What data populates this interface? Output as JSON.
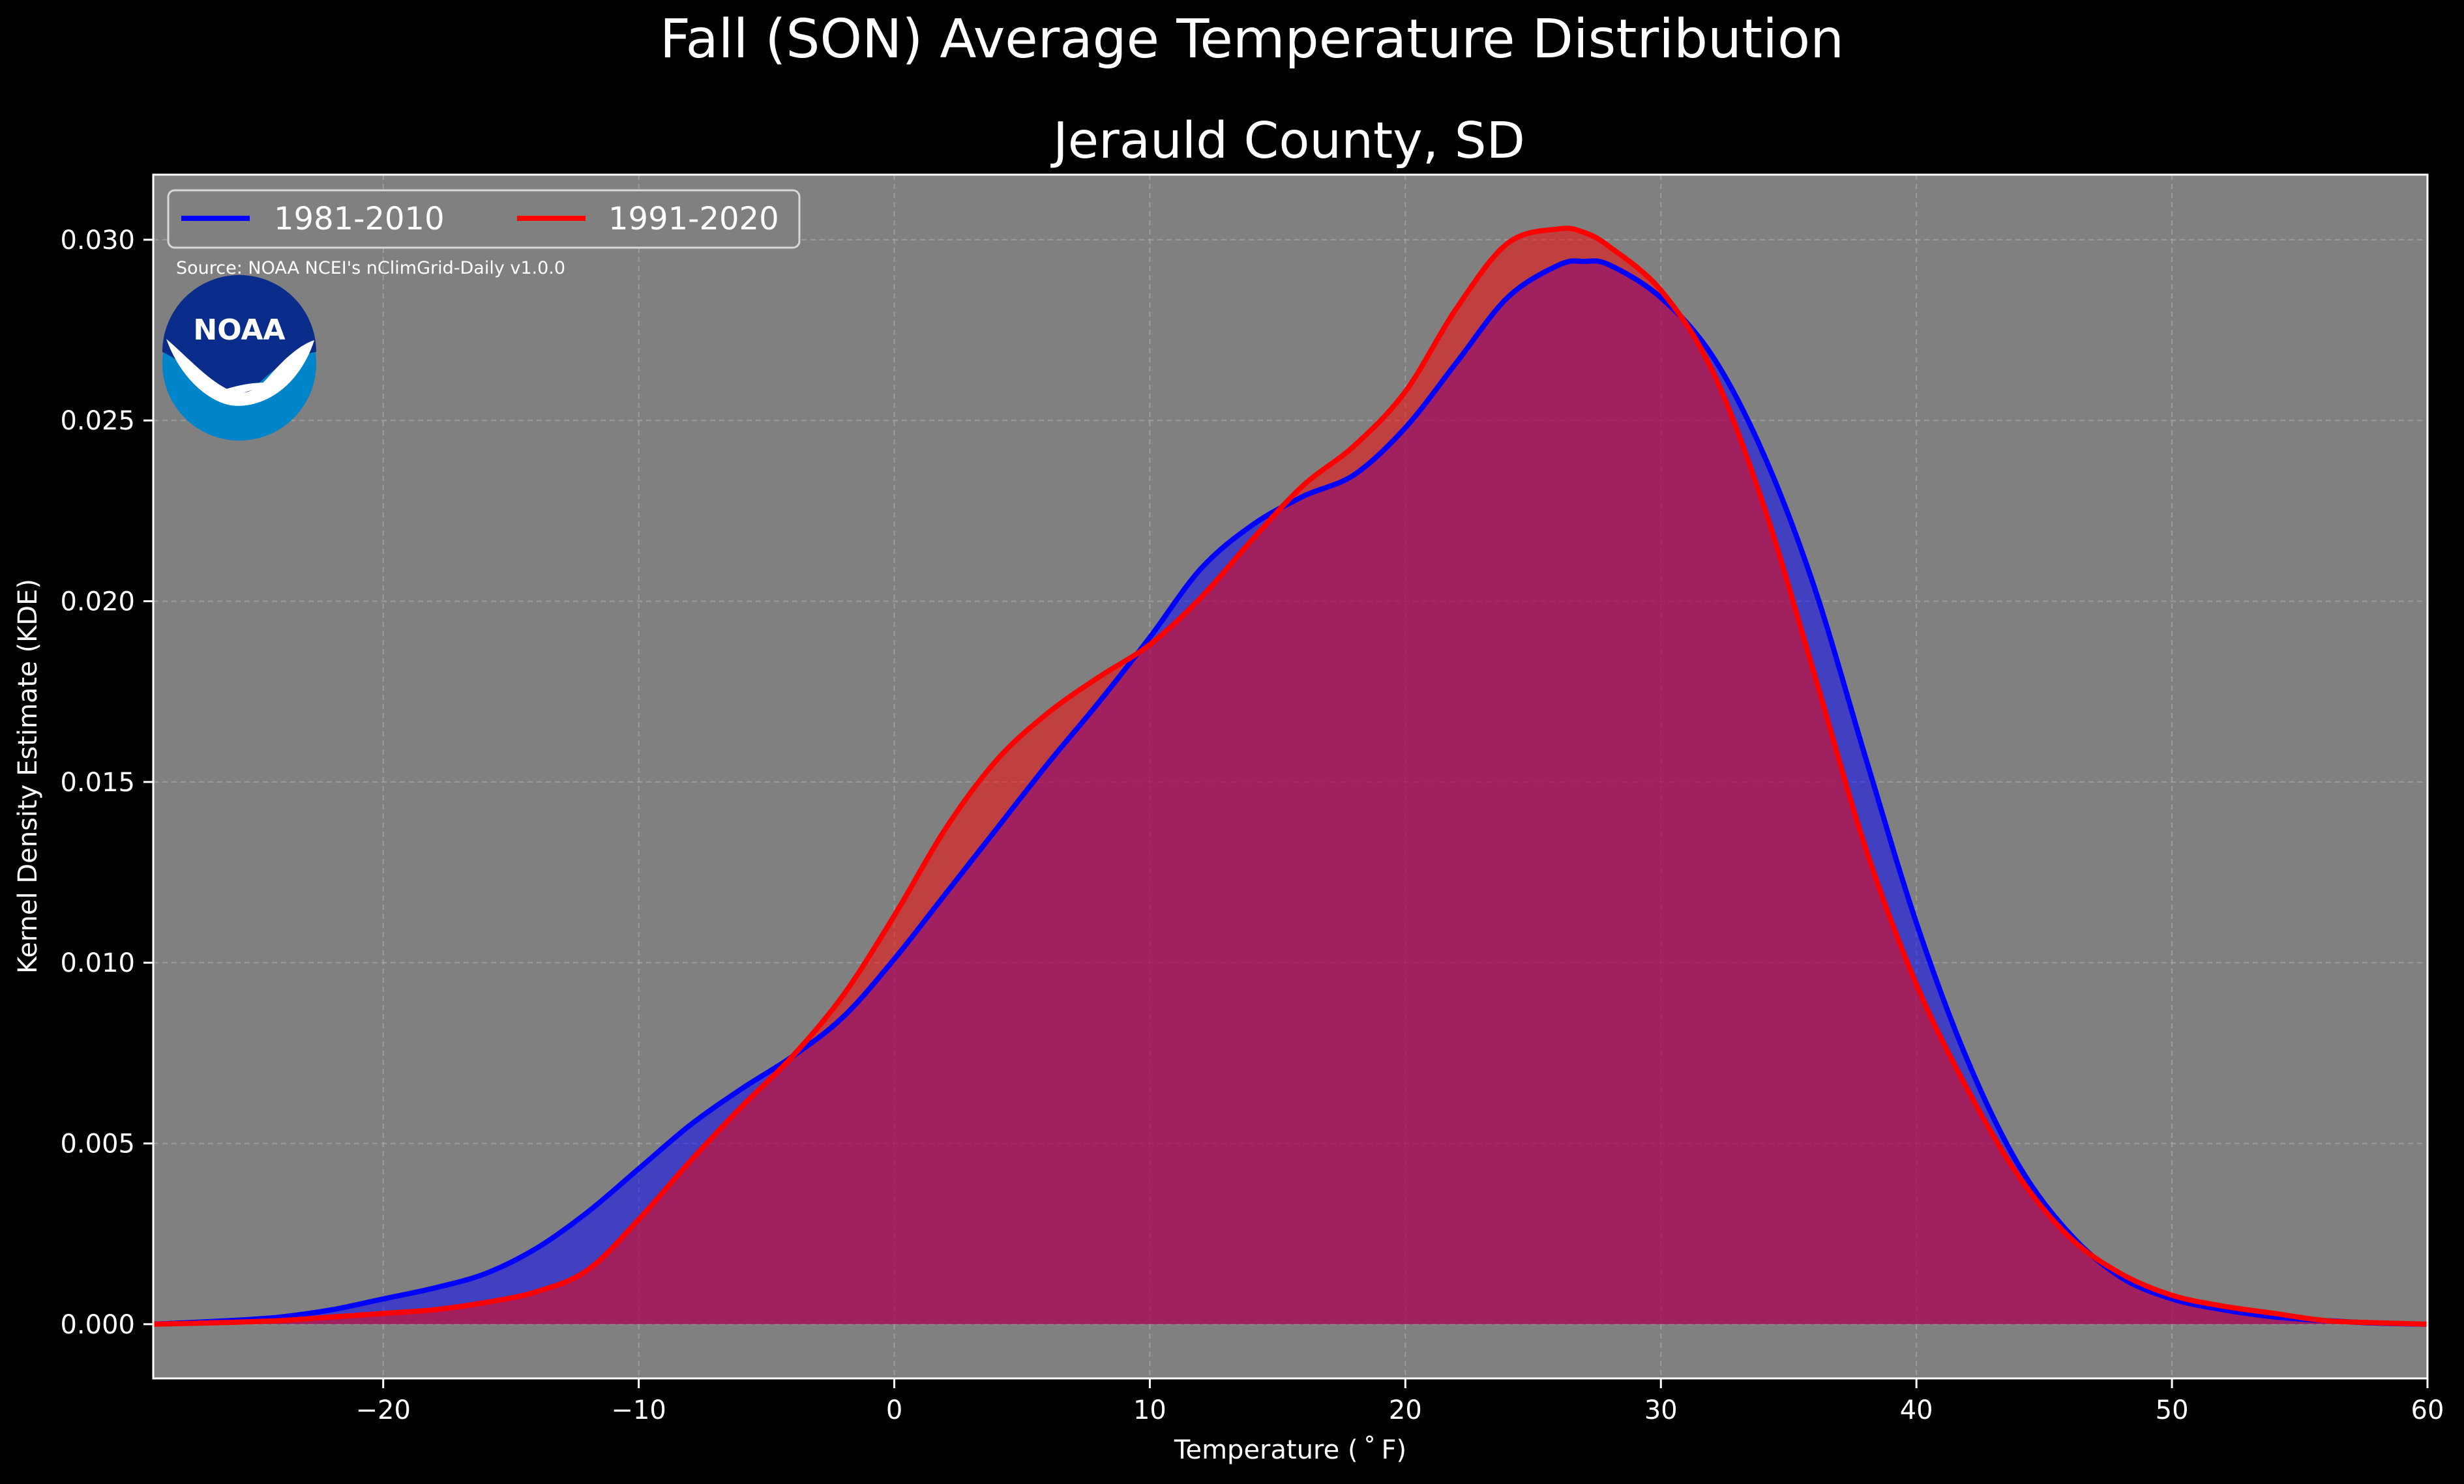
{
  "chart_data": {
    "type": "area",
    "suptitle": "Fall (SON) Average Temperature Distribution",
    "title": "Jerauld County, SD",
    "xlabel": "Temperature ($^\\circ$F)",
    "xlabel_display": "Temperature ( ˚ F)",
    "ylabel": "Kernel Density Estimate (KDE)",
    "xlim": [
      -29,
      60
    ],
    "ylim": [
      -0.0015,
      0.0318
    ],
    "xticks": [
      -20,
      -10,
      0,
      10,
      20,
      30,
      40,
      50,
      60
    ],
    "xtick_labels": [
      "−20",
      "−10",
      "0",
      "10",
      "20",
      "30",
      "40",
      "50",
      "60"
    ],
    "yticks": [
      0.0,
      0.005,
      0.01,
      0.015,
      0.02,
      0.025,
      0.03
    ],
    "ytick_labels": [
      "0.000",
      "0.005",
      "0.010",
      "0.015",
      "0.020",
      "0.025",
      "0.030"
    ],
    "grid": true,
    "legend_position": "top-left",
    "source_note": "Source: NOAA NCEI's nClimGrid-Daily v1.0.0",
    "logo_text": "NOAA",
    "colors": {
      "figure_bg": "#000000",
      "axes_bg": "#808080",
      "grid": "#b0b0b0",
      "series_1981_2010": "#0000ff",
      "series_1991_2020": "#ff0000",
      "overlap_fill": "#9e1e5e",
      "logo_dark": "#0a2d8c",
      "logo_light": "#0085ca"
    },
    "series": [
      {
        "name": "1981-2010",
        "color": "#0000ff",
        "x": [
          -29,
          -26,
          -24,
          -22,
          -20,
          -18,
          -16,
          -14,
          -12,
          -10,
          -8,
          -6,
          -4,
          -2,
          0,
          2,
          4,
          6,
          8,
          10,
          12,
          14,
          16,
          18,
          20,
          22,
          24,
          26,
          27,
          28,
          30,
          32,
          34,
          36,
          38,
          40,
          42,
          44,
          46,
          48,
          50,
          52,
          54,
          56,
          58,
          60
        ],
        "y": [
          0.0,
          0.0001,
          0.0002,
          0.0004,
          0.0007,
          0.001,
          0.0014,
          0.0021,
          0.0031,
          0.0043,
          0.0055,
          0.0065,
          0.0074,
          0.0085,
          0.0101,
          0.0119,
          0.0137,
          0.0155,
          0.0172,
          0.019,
          0.0209,
          0.0221,
          0.0229,
          0.0235,
          0.0248,
          0.0266,
          0.0284,
          0.0293,
          0.0294,
          0.0293,
          0.0284,
          0.0268,
          0.0241,
          0.0204,
          0.0157,
          0.0111,
          0.0073,
          0.0044,
          0.0025,
          0.0013,
          0.0007,
          0.0004,
          0.0002,
          0.0001,
          3e-05,
          0.0
        ]
      },
      {
        "name": "1991-2020",
        "color": "#ff0000",
        "x": [
          -29,
          -26,
          -24,
          -22,
          -20,
          -18,
          -16,
          -14,
          -12,
          -10,
          -8,
          -6,
          -4,
          -2,
          0,
          2,
          4,
          6,
          8,
          10,
          12,
          14,
          16,
          18,
          20,
          22,
          24,
          26,
          27,
          28,
          30,
          32,
          34,
          36,
          38,
          40,
          42,
          44,
          46,
          48,
          50,
          52,
          54,
          56,
          58,
          60
        ],
        "y": [
          0.0,
          5e-05,
          0.0001,
          0.0002,
          0.0003,
          0.0004,
          0.0006,
          0.0009,
          0.0015,
          0.0029,
          0.0045,
          0.006,
          0.0074,
          0.0091,
          0.0113,
          0.0137,
          0.0156,
          0.0169,
          0.0179,
          0.0188,
          0.0201,
          0.0217,
          0.0232,
          0.0243,
          0.0258,
          0.0281,
          0.0299,
          0.0303,
          0.0302,
          0.0298,
          0.0286,
          0.0264,
          0.0227,
          0.018,
          0.0132,
          0.0094,
          0.0065,
          0.0041,
          0.0024,
          0.0014,
          0.0008,
          0.0005,
          0.0003,
          0.0001,
          4e-05,
          0.0
        ]
      }
    ]
  }
}
